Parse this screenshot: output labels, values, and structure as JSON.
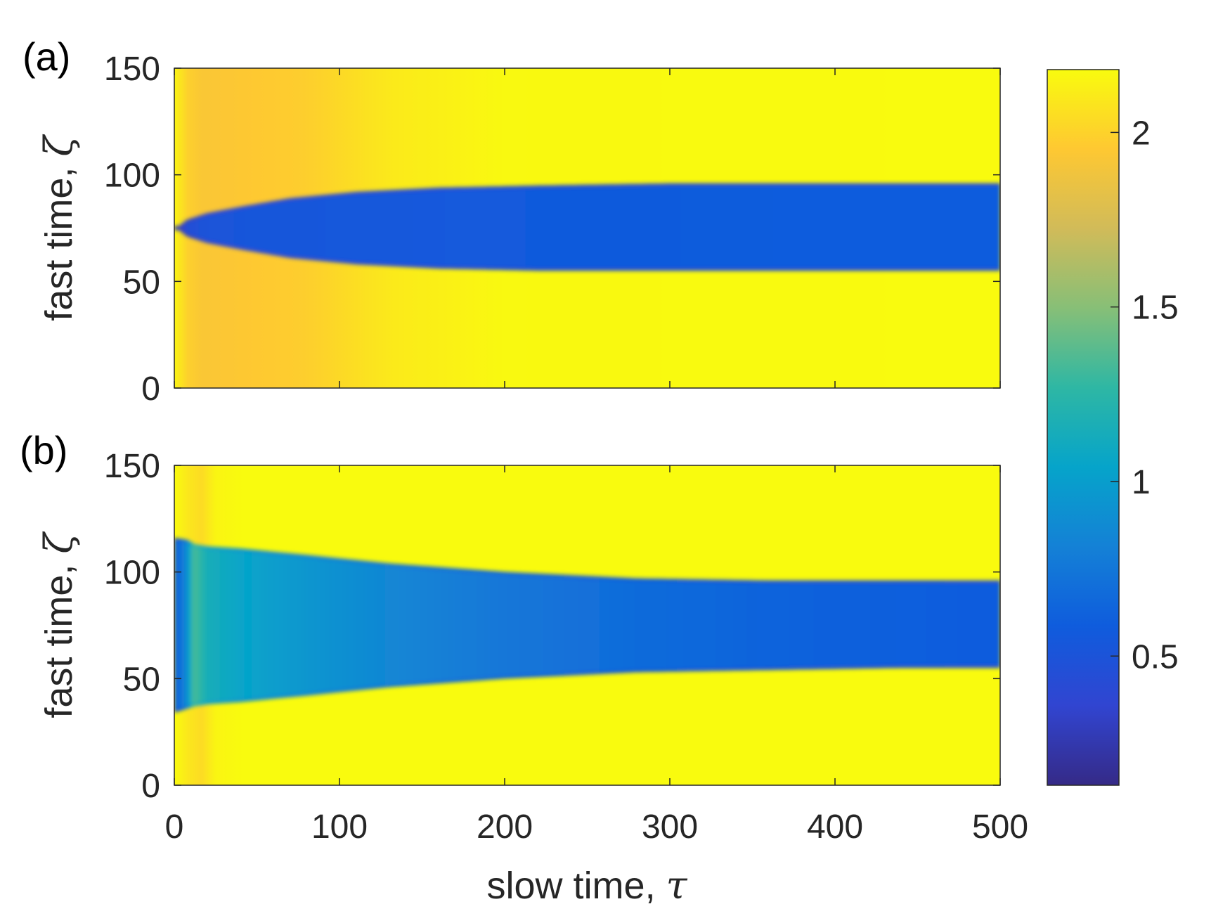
{
  "chart_data": [
    {
      "type": "heatmap",
      "panel_label": "(a)",
      "xlim": [
        0,
        500
      ],
      "ylim": [
        0,
        150
      ],
      "xticks": [
        0,
        100,
        200,
        300,
        400,
        500
      ],
      "yticks": [
        0,
        50,
        100,
        150
      ],
      "xlabel": "",
      "ylabel_text": "fast time, ",
      "ylabel_symbol": "ζ",
      "background_band": {
        "tau": [
          0,
          5,
          10,
          30,
          80,
          130,
          200,
          500
        ],
        "value": [
          2.15,
          2.1,
          1.93,
          1.94,
          1.98,
          2.1,
          2.17,
          2.18
        ]
      },
      "low_region": {
        "tau": [
          0,
          3,
          8,
          20,
          40,
          70,
          110,
          160,
          220,
          300,
          400,
          500
        ],
        "lower": [
          75,
          74,
          71,
          68,
          65,
          61,
          58,
          56,
          55,
          55,
          55,
          55
        ],
        "upper": [
          75,
          76,
          79,
          82,
          85,
          89,
          92,
          94,
          95,
          96,
          96,
          96
        ],
        "value": [
          0.15,
          0.25,
          0.45,
          0.5,
          0.52,
          0.53,
          0.55,
          0.56,
          0.57,
          0.57,
          0.58,
          0.58
        ]
      }
    },
    {
      "type": "heatmap",
      "panel_label": "(b)",
      "xlim": [
        0,
        500
      ],
      "ylim": [
        0,
        150
      ],
      "xticks": [
        0,
        100,
        200,
        300,
        400,
        500
      ],
      "yticks": [
        0,
        50,
        100,
        150
      ],
      "xlabel_text": "slow time, ",
      "xlabel_symbol": "τ",
      "ylabel_text": "fast time, ",
      "ylabel_symbol": "ζ",
      "background_band": {
        "tau": [
          0,
          8,
          12,
          18,
          24,
          40,
          500
        ],
        "value": [
          2.18,
          2.1,
          2.0,
          2.05,
          2.15,
          2.18,
          2.18
        ]
      },
      "low_region": {
        "tau": [
          0,
          8,
          12,
          20,
          40,
          80,
          130,
          200,
          280,
          360,
          440,
          500
        ],
        "lower": [
          34,
          36,
          37,
          38,
          39,
          42,
          46,
          50,
          53,
          54,
          55,
          55
        ],
        "upper": [
          116,
          115,
          113,
          112,
          111,
          108,
          104,
          100,
          97,
          96,
          96,
          96
        ],
        "value": [
          0.55,
          0.9,
          1.35,
          1.15,
          1.05,
          0.95,
          0.85,
          0.75,
          0.68,
          0.63,
          0.6,
          0.58
        ]
      }
    }
  ],
  "colorbar": {
    "range": [
      0.13,
      2.18
    ],
    "ticks": [
      0.5,
      1,
      1.5,
      2
    ],
    "tick_labels": [
      "0.5",
      "1",
      "1.5",
      "2"
    ],
    "colormap": "parula",
    "stops": [
      "#352a87",
      "#3145d1",
      "#0f5cdd",
      "#1481d6",
      "#06a4ca",
      "#2eb7a4",
      "#87bf77",
      "#d1bb59",
      "#fec832",
      "#f9fb0e"
    ]
  },
  "shared_xlabel_text": "slow time, ",
  "shared_xlabel_symbol": "τ"
}
